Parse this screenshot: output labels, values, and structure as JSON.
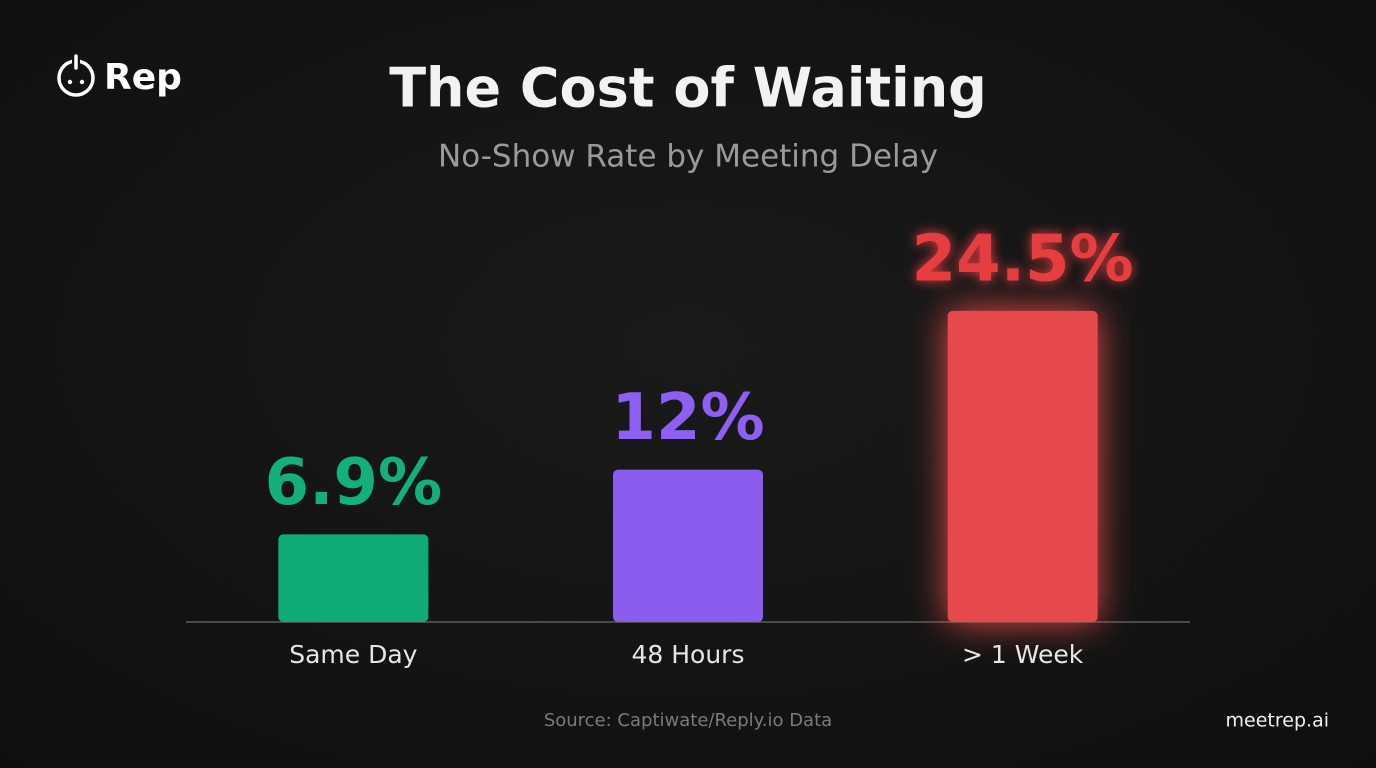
{
  "chart_data": {
    "type": "bar",
    "title": "The Cost of Waiting",
    "subtitle": "No-Show Rate by Meeting Delay",
    "categories": [
      "Same Day",
      "48 Hours",
      "> 1 Week"
    ],
    "values": [
      6.9,
      12,
      24.5
    ],
    "value_labels": [
      "6.9%",
      "12%",
      "24.5%"
    ],
    "colors": [
      "#10ac78",
      "#8b5cf0",
      "#e5484b"
    ],
    "label_colors": [
      "#14b07c",
      "#8d5ff2",
      "#e53e40"
    ],
    "glow": [
      false,
      false,
      true
    ],
    "logo_text": "Rep",
    "source": "Source: Captiwate/Reply.io Data",
    "website": "meetrep.ai"
  }
}
